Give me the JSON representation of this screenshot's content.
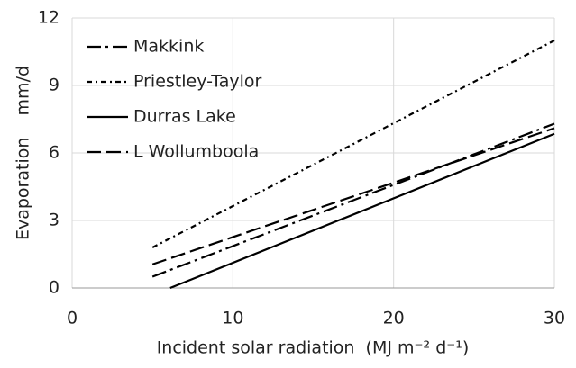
{
  "chart_data": {
    "type": "line",
    "xlabel": "Incident solar radiation  (MJ m⁻² d⁻¹)",
    "ylabel": "Evaporation    mm/d",
    "xlim": [
      0,
      30
    ],
    "xticks": [
      0,
      10,
      20,
      30
    ],
    "ylim": [
      0,
      12
    ],
    "yticks": [
      0,
      3,
      6,
      9,
      12
    ],
    "grid": true,
    "legend": "upper-left",
    "series": [
      {
        "name": "Makkink",
        "color": "#000000",
        "dash": "16,5,3,5",
        "x": [
          5,
          30
        ],
        "values": [
          0.5,
          7.3
        ]
      },
      {
        "name": "Priestley-Taylor",
        "color": "#000000",
        "dash": "6,4,2,4",
        "x": [
          5,
          30
        ],
        "values": [
          1.8,
          11.0
        ]
      },
      {
        "name": "Durras Lake",
        "color": "#000000",
        "dash": "none",
        "x": [
          6.1,
          30
        ],
        "values": [
          0,
          6.85
        ]
      },
      {
        "name": "L Wollumboola",
        "color": "#000000",
        "dash": "16,6",
        "x": [
          5,
          30
        ],
        "values": [
          1.05,
          7.1
        ]
      }
    ]
  }
}
